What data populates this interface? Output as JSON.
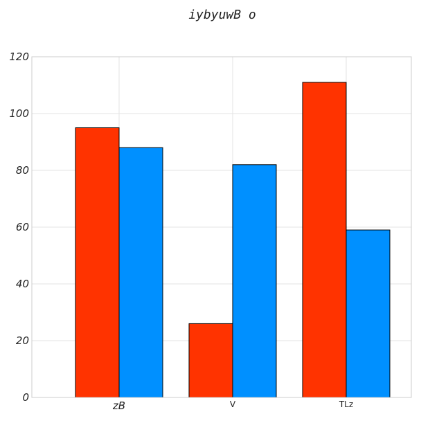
{
  "chart_data": {
    "type": "bar",
    "title": "iybyuwB   o",
    "xlabel": "",
    "ylabel": "",
    "categories": [
      "zB",
      "V",
      "TLz"
    ],
    "series": [
      {
        "values": [
          95,
          26,
          111
        ],
        "color": "#ff3300"
      },
      {
        "values": [
          88,
          82,
          59
        ],
        "color": "#0090ff"
      }
    ],
    "ylim": [
      0,
      120
    ],
    "yticks": [
      0,
      20,
      40,
      60,
      80,
      100,
      120
    ],
    "grid": true,
    "legend": "none"
  }
}
